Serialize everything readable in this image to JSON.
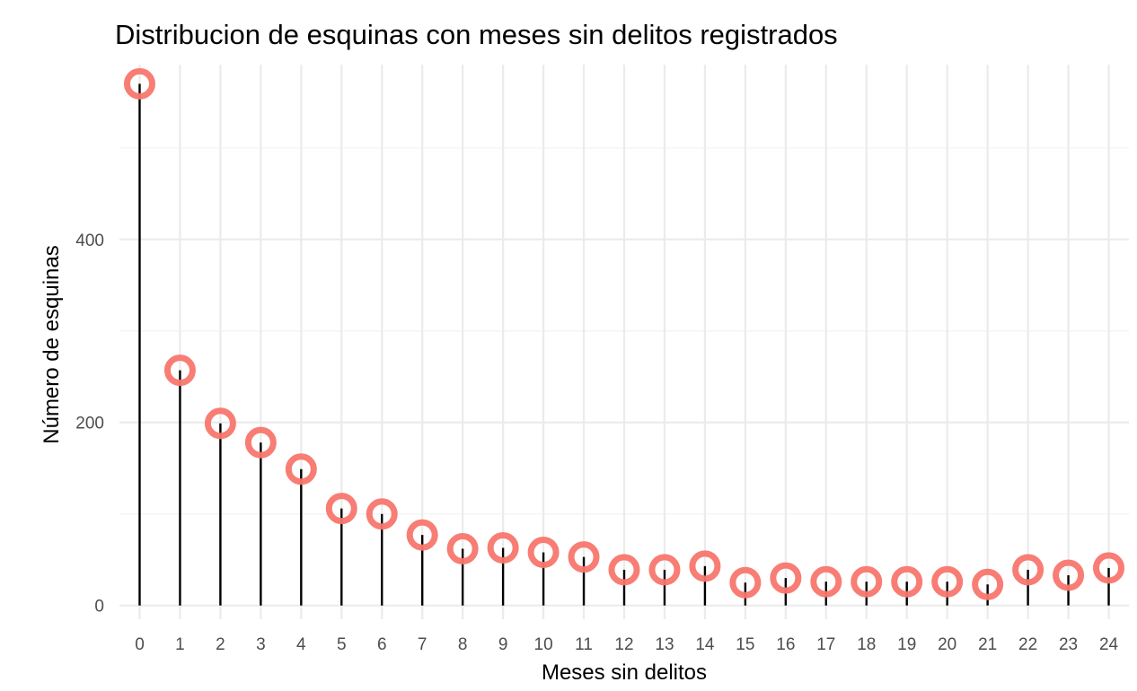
{
  "chart_data": {
    "type": "scatter",
    "title": "Distribucion de esquinas con meses sin delitos registrados",
    "xlabel": "Meses sin delitos",
    "ylabel": "Número de esquinas",
    "x": [
      0,
      1,
      2,
      3,
      4,
      5,
      6,
      7,
      8,
      9,
      10,
      11,
      12,
      13,
      14,
      15,
      16,
      17,
      18,
      19,
      20,
      21,
      22,
      23,
      24
    ],
    "values": [
      570,
      257,
      199,
      178,
      149,
      106,
      100,
      77,
      62,
      63,
      58,
      53,
      39,
      39,
      43,
      25,
      30,
      26,
      26,
      26,
      26,
      23,
      39,
      33,
      41
    ],
    "x_ticks": [
      "0",
      "1",
      "2",
      "3",
      "4",
      "5",
      "6",
      "7",
      "8",
      "9",
      "10",
      "11",
      "12",
      "13",
      "14",
      "15",
      "16",
      "17",
      "18",
      "19",
      "20",
      "21",
      "22",
      "23",
      "24"
    ],
    "y_ticks": [
      0,
      200,
      400
    ],
    "ylim": [
      0,
      600
    ],
    "xlim": [
      -0.5,
      24.5
    ],
    "grid": true,
    "style": "lollipop",
    "colors": {
      "point": "#f8766d",
      "stem": "#000000",
      "grid": "#ebebeb"
    }
  }
}
